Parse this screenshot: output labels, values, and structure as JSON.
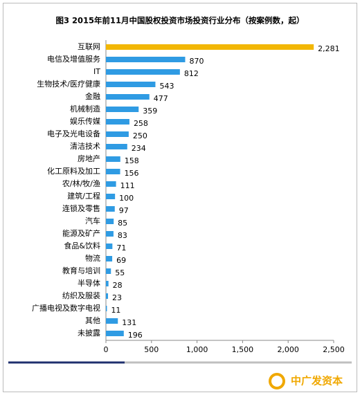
{
  "chart_data": {
    "type": "hbar",
    "title": "图3 2015年前11月中国股权投资市场投资行业分布（按案例数，起）",
    "categories": [
      "互联网",
      "电信及增值服务",
      "IT",
      "生物技术/医疗健康",
      "金融",
      "机械制造",
      "娱乐传媒",
      "电子及光电设备",
      "清洁技术",
      "房地产",
      "化工原料及加工",
      "农/林/牧/渔",
      "建筑/工程",
      "连锁及零售",
      "汽车",
      "能源及矿产",
      "食品&饮料",
      "物流",
      "教育与培训",
      "半导体",
      "纺织及服装",
      "广播电视及数字电视",
      "其他",
      "未披露"
    ],
    "values": [
      2281,
      870,
      812,
      543,
      477,
      359,
      258,
      250,
      234,
      158,
      156,
      111,
      100,
      97,
      85,
      83,
      71,
      69,
      55,
      28,
      23,
      11,
      131,
      196
    ],
    "value_labels": [
      "2,281",
      "870",
      "812",
      "543",
      "477",
      "359",
      "258",
      "250",
      "234",
      "158",
      "156",
      "111",
      "100",
      "97",
      "85",
      "83",
      "71",
      "69",
      "55",
      "28",
      "23",
      "11",
      "131",
      "196"
    ],
    "colors": [
      "#f2b705",
      "#2f9be3",
      "#2f9be3",
      "#2f9be3",
      "#2f9be3",
      "#2f9be3",
      "#2f9be3",
      "#2f9be3",
      "#2f9be3",
      "#2f9be3",
      "#2f9be3",
      "#2f9be3",
      "#2f9be3",
      "#2f9be3",
      "#2f9be3",
      "#2f9be3",
      "#2f9be3",
      "#2f9be3",
      "#2f9be3",
      "#2f9be3",
      "#2f9be3",
      "#2f9be3",
      "#2f9be3",
      "#2f9be3"
    ],
    "xlim": [
      0,
      2500
    ],
    "xticks": [
      0,
      500,
      {
        "value": 1000,
        "label": "1,000"
      },
      {
        "value": 1500,
        "label": "1,500"
      },
      {
        "value": 2000,
        "label": "2,000"
      },
      {
        "value": 2500,
        "label": "2,500"
      }
    ]
  },
  "brand": "中广发资本"
}
